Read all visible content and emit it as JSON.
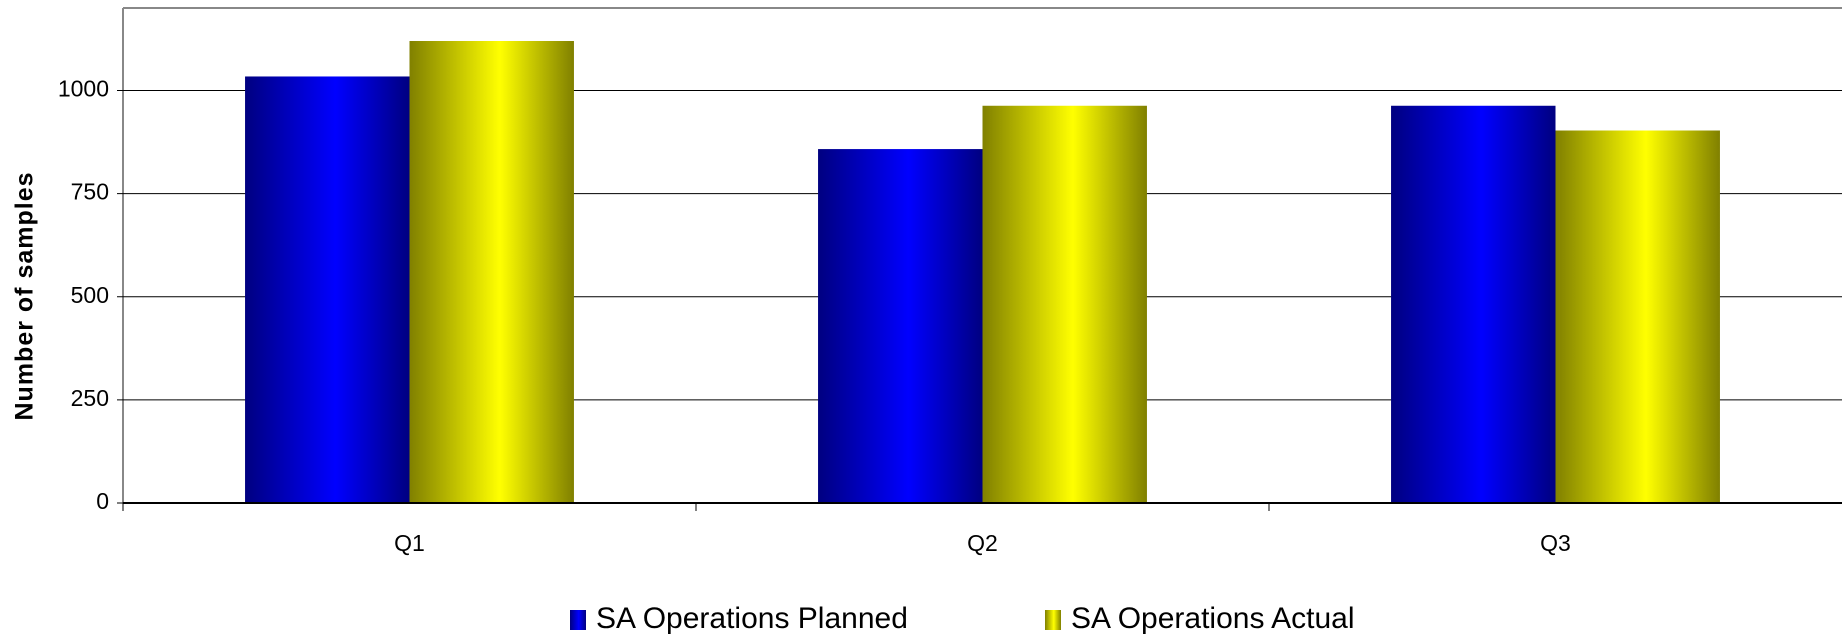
{
  "chart_data": {
    "type": "bar",
    "y_label": "Number of samples",
    "categories": [
      "Q1",
      "Q2",
      "Q3"
    ],
    "series": [
      {
        "name": "SA Operations Planned",
        "color": "#0000ff",
        "values": [
          1034,
          858,
          963
        ]
      },
      {
        "name": "SA Operations Actual",
        "color": "#ffff00",
        "values": [
          1120,
          963,
          903
        ]
      }
    ],
    "ylim": [
      0,
      1200
    ],
    "yticks": [
      0,
      250,
      500,
      750,
      1000
    ],
    "grid": true,
    "legend": "bottom"
  }
}
